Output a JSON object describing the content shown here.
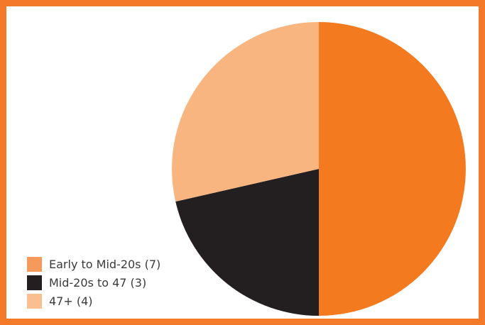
{
  "chart_data": {
    "type": "pie",
    "title": "",
    "legend_position": "bottom-left",
    "slices": [
      {
        "label": "Early to Mid-20s (7)",
        "value": 7,
        "color": "#f47a20",
        "legend_color": "#f59a5a"
      },
      {
        "label": "Mid-20s to 47 (3)",
        "value": 3,
        "color": "#231f20",
        "legend_color": "#231f20"
      },
      {
        "label": "47+ (4)",
        "value": 4,
        "color": "#f9b580",
        "legend_color": "#fbbf8f"
      }
    ]
  },
  "colors": {
    "frame_border": "#f47a2a",
    "background": "#ffffff"
  }
}
